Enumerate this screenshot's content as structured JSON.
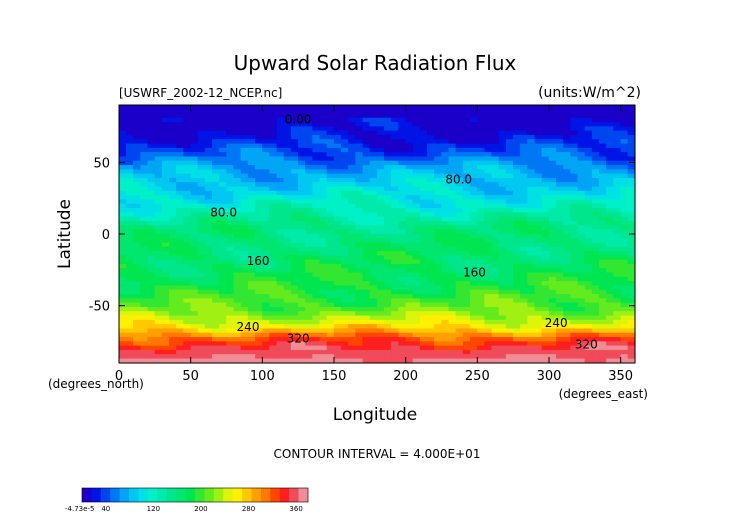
{
  "chart_data": {
    "type": "heatmap",
    "title": "Upward Solar Radiation Flux",
    "file_label": "[USWRF_2002-12_NCEP.nc]",
    "units_label": "(units:W/m^2)",
    "xlabel": "Longitude",
    "ylabel": "Latitude",
    "x_unit_label": "(degrees_east)",
    "y_unit_label": "(degrees_north)",
    "xlim": [
      0,
      360
    ],
    "ylim": [
      -90,
      90
    ],
    "x_ticks": [
      0,
      50,
      100,
      150,
      200,
      250,
      300,
      350
    ],
    "y_ticks": [
      -50,
      0,
      50
    ],
    "contour_interval_label": "CONTOUR INTERVAL = 4.000E+01",
    "contour_labels": [
      {
        "text": "0.00",
        "lon": 125,
        "lat": 80
      },
      {
        "text": "80.0",
        "lon": 237,
        "lat": 38
      },
      {
        "text": "80.0",
        "lon": 73,
        "lat": 15
      },
      {
        "text": "160",
        "lon": 97,
        "lat": -19
      },
      {
        "text": "160",
        "lon": 248,
        "lat": -27
      },
      {
        "text": "240",
        "lon": 90,
        "lat": -65
      },
      {
        "text": "240",
        "lon": 305,
        "lat": -62
      },
      {
        "text": "320",
        "lon": 125,
        "lat": -73
      },
      {
        "text": "320",
        "lon": 326,
        "lat": -77
      }
    ],
    "latitude_profile": [
      {
        "lat": 90,
        "value": 0
      },
      {
        "lat": 70,
        "value": 15
      },
      {
        "lat": 55,
        "value": 45
      },
      {
        "lat": 45,
        "value": 75
      },
      {
        "lat": 32,
        "value": 95
      },
      {
        "lat": 20,
        "value": 118
      },
      {
        "lat": 5,
        "value": 155
      },
      {
        "lat": -10,
        "value": 165
      },
      {
        "lat": -25,
        "value": 175
      },
      {
        "lat": -40,
        "value": 190
      },
      {
        "lat": -52,
        "value": 210
      },
      {
        "lat": -60,
        "value": 240
      },
      {
        "lat": -66,
        "value": 270
      },
      {
        "lat": -72,
        "value": 315
      },
      {
        "lat": -78,
        "value": 345
      },
      {
        "lat": -90,
        "value": 370
      }
    ],
    "colorbar": {
      "min_label": "-4.73e-5",
      "tick_labels": [
        "40",
        "120",
        "200",
        "280",
        "360"
      ],
      "colors": [
        "#1a00c8",
        "#0014e6",
        "#0046f0",
        "#0078f5",
        "#00a5f5",
        "#00c8f0",
        "#00e1e6",
        "#00f0c8",
        "#00ebaa",
        "#00e68c",
        "#00e66e",
        "#00e650",
        "#32e632",
        "#64eb1e",
        "#a0f014",
        "#dcf50a",
        "#fff000",
        "#ffc800",
        "#ffa000",
        "#ff7800",
        "#ff4600",
        "#ff1e1e",
        "#f04b5a",
        "#f08c96"
      ],
      "min": 0,
      "max": 380
    }
  }
}
